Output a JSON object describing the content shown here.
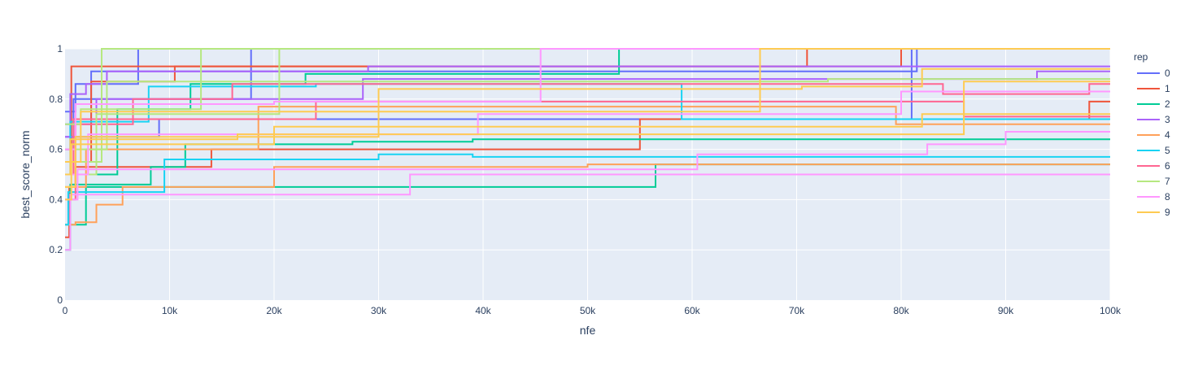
{
  "chart_data": {
    "type": "line",
    "line_shape": "step",
    "xlabel": "nfe",
    "ylabel": "best_score_norm",
    "xlim": [
      0,
      100000
    ],
    "ylim": [
      0,
      1
    ],
    "x_ticks": [
      {
        "value": 0,
        "label": "0"
      },
      {
        "value": 10000,
        "label": "10k"
      },
      {
        "value": 20000,
        "label": "20k"
      },
      {
        "value": 30000,
        "label": "30k"
      },
      {
        "value": 40000,
        "label": "40k"
      },
      {
        "value": 50000,
        "label": "50k"
      },
      {
        "value": 60000,
        "label": "60k"
      },
      {
        "value": 70000,
        "label": "70k"
      },
      {
        "value": 80000,
        "label": "80k"
      },
      {
        "value": 90000,
        "label": "90k"
      },
      {
        "value": 100000,
        "label": "100k"
      }
    ],
    "y_ticks": [
      {
        "value": 0,
        "label": "0"
      },
      {
        "value": 0.2,
        "label": "0.2"
      },
      {
        "value": 0.4,
        "label": "0.4"
      },
      {
        "value": 0.6,
        "label": "0.6"
      },
      {
        "value": 0.8,
        "label": "0.8"
      },
      {
        "value": 1,
        "label": "1"
      }
    ],
    "grid": true,
    "plot_background": "#E5ECF6",
    "legend": {
      "title": "rep",
      "placement": "right"
    },
    "series": [
      {
        "name": "0",
        "color": "#636EFA",
        "runs": [
          [
            [
              0,
              0.75
            ],
            [
              1000,
              0.86
            ],
            [
              7000,
              1.0
            ]
          ],
          [
            [
              0,
              0.6
            ],
            [
              800,
              0.8
            ],
            [
              17800,
              1.0
            ]
          ],
          [
            [
              0,
              0.7
            ],
            [
              2500,
              0.91
            ],
            [
              81500,
              1.0
            ]
          ],
          [
            [
              0,
              0.65
            ],
            [
              9000,
              0.72
            ],
            [
              81000,
              1.0
            ]
          ]
        ]
      },
      {
        "name": "1",
        "color": "#EF553B",
        "runs": [
          [
            [
              0,
              0.25
            ],
            [
              400,
              0.45
            ],
            [
              1000,
              0.53
            ],
            [
              14000,
              0.6
            ],
            [
              55000,
              0.72
            ],
            [
              98000,
              0.79
            ]
          ],
          [
            [
              0,
              0.6
            ],
            [
              600,
              0.93
            ],
            [
              71000,
              1.0
            ]
          ],
          [
            [
              0,
              0.55
            ],
            [
              2500,
              0.87
            ],
            [
              10500,
              0.93
            ],
            [
              80000,
              1.0
            ]
          ]
        ]
      },
      {
        "name": "2",
        "color": "#00CC96",
        "runs": [
          [
            [
              0,
              0.2
            ],
            [
              500,
              0.46
            ],
            [
              8200,
              0.53
            ],
            [
              11500,
              0.62
            ],
            [
              27500,
              0.63
            ],
            [
              39000,
              0.64
            ]
          ],
          [
            [
              0,
              0.3
            ],
            [
              2000,
              0.45
            ],
            [
              56500,
              0.54
            ]
          ],
          [
            [
              0,
              0.5
            ],
            [
              5000,
              0.76
            ],
            [
              12000,
              0.86
            ],
            [
              23000,
              0.9
            ],
            [
              53000,
              1.0
            ]
          ]
        ]
      },
      {
        "name": "3",
        "color": "#AB63FA",
        "runs": [
          [
            [
              0,
              0.6
            ],
            [
              500,
              0.82
            ],
            [
              2000,
              0.86
            ],
            [
              4000,
              0.91
            ],
            [
              29000,
              0.93
            ]
          ],
          [
            [
              0,
              0.65
            ],
            [
              3000,
              0.8
            ],
            [
              28500,
              0.88
            ],
            [
              93000,
              0.91
            ]
          ]
        ]
      },
      {
        "name": "4",
        "color": "#FFA15A",
        "runs": [
          [
            [
              0,
              0.3
            ],
            [
              1000,
              0.31
            ],
            [
              3000,
              0.38
            ],
            [
              5500,
              0.45
            ],
            [
              20000,
              0.53
            ],
            [
              50000,
              0.54
            ]
          ],
          [
            [
              0,
              0.45
            ],
            [
              2000,
              0.6
            ],
            [
              18500,
              0.77
            ],
            [
              79500,
              0.7
            ]
          ]
        ]
      },
      {
        "name": "5",
        "color": "#19D3F3",
        "runs": [
          [
            [
              0,
              0.3
            ],
            [
              300,
              0.43
            ],
            [
              9500,
              0.56
            ],
            [
              30000,
              0.58
            ],
            [
              39000,
              0.57
            ],
            [
              72000,
              0.57
            ]
          ],
          [
            [
              0,
              0.5
            ],
            [
              500,
              0.71
            ],
            [
              8000,
              0.85
            ],
            [
              24000,
              0.86
            ],
            [
              59000,
              0.72
            ]
          ]
        ]
      },
      {
        "name": "6",
        "color": "#FF6692",
        "runs": [
          [
            [
              0,
              0.4
            ],
            [
              1000,
              0.7
            ],
            [
              6500,
              0.8
            ],
            [
              16000,
              0.86
            ],
            [
              84000,
              0.82
            ],
            [
              98000,
              0.86
            ]
          ],
          [
            [
              0,
              0.5
            ],
            [
              800,
              0.72
            ],
            [
              24000,
              0.79
            ],
            [
              86000,
              0.73
            ]
          ]
        ]
      },
      {
        "name": "7",
        "color": "#B6E880",
        "runs": [
          [
            [
              0,
              0.55
            ],
            [
              3500,
              1.0
            ]
          ],
          [
            [
              0,
              0.7
            ],
            [
              1500,
              0.76
            ],
            [
              13000,
              1.0
            ]
          ],
          [
            [
              0,
              0.6
            ],
            [
              4000,
              0.87
            ],
            [
              60500,
              0.87
            ],
            [
              73000,
              0.88
            ]
          ],
          [
            [
              0,
              0.5
            ],
            [
              3000,
              0.74
            ],
            [
              20500,
              1.0
            ]
          ]
        ]
      },
      {
        "name": "8",
        "color": "#FF97FF",
        "runs": [
          [
            [
              0,
              0.2
            ],
            [
              500,
              0.42
            ],
            [
              33000,
              0.5
            ]
          ],
          [
            [
              0,
              0.6
            ],
            [
              1000,
              0.78
            ],
            [
              20000,
              0.79
            ],
            [
              45500,
              1.0
            ]
          ],
          [
            [
              0,
              0.4
            ],
            [
              1200,
              0.52
            ],
            [
              60500,
              0.58
            ],
            [
              82500,
              0.62
            ],
            [
              90000,
              0.67
            ]
          ],
          [
            [
              0,
              0.5
            ],
            [
              2200,
              0.66
            ],
            [
              39500,
              0.74
            ],
            [
              80000,
              0.83
            ]
          ]
        ]
      },
      {
        "name": "9",
        "color": "#FECB52",
        "runs": [
          [
            [
              0,
              0.4
            ],
            [
              600,
              0.62
            ],
            [
              20000,
              0.69
            ],
            [
              63000,
              0.69
            ],
            [
              82000,
              0.74
            ]
          ],
          [
            [
              0,
              0.55
            ],
            [
              1500,
              0.75
            ],
            [
              66500,
              1.0
            ]
          ],
          [
            [
              0,
              0.45
            ],
            [
              1000,
              0.65
            ],
            [
              30000,
              0.84
            ],
            [
              70500,
              0.85
            ],
            [
              82000,
              0.92
            ]
          ],
          [
            [
              0,
              0.5
            ],
            [
              500,
              0.64
            ],
            [
              16500,
              0.66
            ],
            [
              86000,
              0.87
            ]
          ]
        ]
      }
    ]
  }
}
